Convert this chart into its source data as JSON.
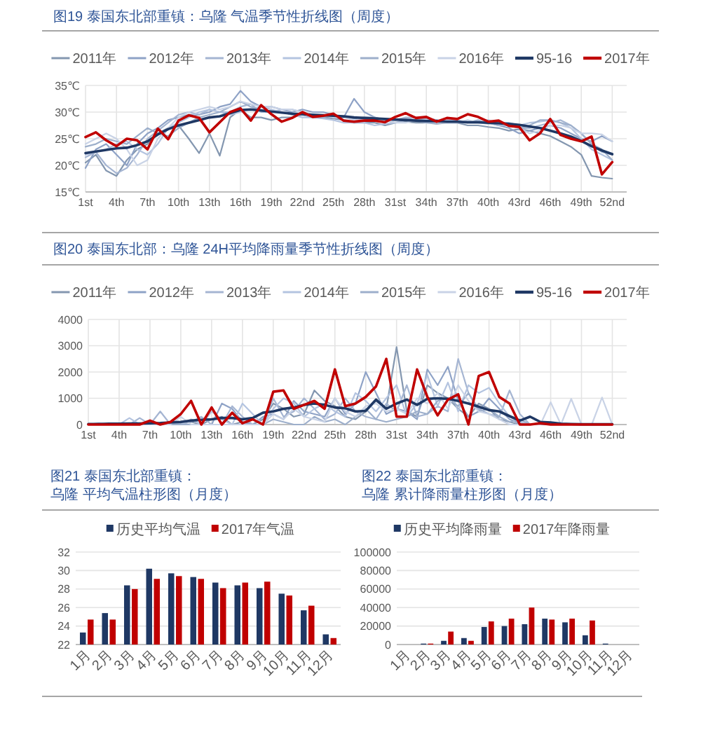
{
  "chart_data": [
    {
      "type": "line",
      "title": "图19 泰国东北部重镇：乌隆 气温季节性折线图（周度）",
      "categories": [
        "1st",
        null,
        null,
        "4th",
        null,
        null,
        "7th",
        null,
        null,
        "10th",
        null,
        null,
        "13th",
        null,
        null,
        "16th",
        null,
        null,
        "19th",
        null,
        null,
        "22nd",
        null,
        null,
        "25th",
        null,
        null,
        "28th",
        null,
        null,
        "31st",
        null,
        null,
        "34th",
        null,
        null,
        "37th",
        null,
        null,
        "40th",
        null,
        null,
        "43rd",
        null,
        null,
        "46th",
        null,
        null,
        "49th",
        null,
        null,
        "52nd"
      ],
      "ylim": [
        15,
        35
      ],
      "yticks": [
        {
          "value": 15,
          "label": "15℃"
        },
        {
          "value": 20,
          "label": "20℃"
        },
        {
          "value": 25,
          "label": "25℃"
        },
        {
          "value": 30,
          "label": "30℃"
        },
        {
          "value": 35,
          "label": "35℃"
        }
      ],
      "grid": true,
      "legend": "top",
      "series": [
        {
          "name": "2011年",
          "color": "#8497b0",
          "values": [
            20.5,
            22.0,
            19.0,
            18.0,
            21.0,
            23.0,
            24.0,
            26.0,
            27.0,
            27.5,
            25.0,
            22.3,
            26.0,
            21.8,
            29.0,
            30.5,
            29.0,
            29.0,
            28.5,
            29.0,
            29.0,
            29.5,
            29.0,
            29.0,
            28.8,
            28.5,
            28.0,
            28.0,
            28.0,
            27.5,
            28.0,
            28.2,
            28.0,
            28.0,
            27.8,
            28.0,
            28.0,
            27.5,
            27.5,
            27.2,
            27.0,
            26.5,
            26.8,
            26.5,
            26.0,
            25.5,
            24.5,
            23.5,
            22.0,
            18.0,
            17.7,
            17.5
          ]
        },
        {
          "name": "2012年",
          "color": "#8ea2c6",
          "values": [
            19.5,
            23.0,
            24.0,
            22.0,
            20.0,
            24.0,
            26.0,
            27.0,
            28.5,
            29.0,
            29.5,
            29.5,
            30.0,
            31.0,
            31.5,
            34.0,
            32.0,
            31.0,
            31.0,
            30.5,
            30.0,
            30.5,
            30.0,
            30.0,
            29.5,
            29.0,
            32.5,
            30.0,
            29.0,
            28.5,
            28.5,
            28.8,
            28.5,
            28.5,
            28.2,
            28.5,
            28.3,
            28.0,
            28.0,
            28.0,
            27.5,
            27.0,
            26.0,
            26.5,
            27.0,
            27.5,
            27.0,
            26.0,
            25.0,
            24.5,
            25.5,
            24.5
          ]
        },
        {
          "name": "2013年",
          "color": "#a5b5d2",
          "values": [
            21.5,
            22.5,
            20.0,
            18.5,
            19.5,
            22.0,
            25.0,
            26.5,
            28.0,
            29.5,
            30.0,
            29.5,
            30.5,
            30.0,
            30.0,
            31.0,
            31.5,
            30.0,
            30.0,
            30.5,
            30.5,
            30.0,
            29.5,
            29.5,
            29.0,
            29.0,
            29.0,
            28.5,
            28.5,
            28.5,
            28.5,
            29.0,
            29.0,
            28.8,
            28.5,
            28.2,
            28.0,
            28.0,
            28.5,
            28.0,
            27.5,
            27.5,
            27.0,
            27.0,
            27.5,
            28.0,
            28.5,
            27.5,
            26.0,
            24.0,
            22.5,
            22.0
          ]
        },
        {
          "name": "2014年",
          "color": "#b4c4e0",
          "values": [
            22.0,
            22.5,
            23.0,
            24.0,
            24.5,
            23.0,
            22.0,
            24.0,
            27.0,
            28.0,
            29.0,
            30.0,
            30.5,
            30.0,
            29.5,
            30.0,
            30.5,
            31.0,
            30.5,
            30.0,
            29.5,
            29.0,
            29.0,
            28.8,
            28.5,
            28.0,
            28.0,
            28.0,
            27.5,
            27.8,
            28.0,
            28.5,
            28.5,
            28.0,
            28.0,
            28.5,
            28.5,
            28.0,
            28.0,
            28.5,
            28.0,
            28.0,
            27.5,
            28.0,
            28.2,
            28.5,
            28.0,
            27.0,
            25.0,
            23.0,
            22.0,
            21.0
          ]
        },
        {
          "name": "2015年",
          "color": "#9dafcb",
          "values": [
            23.5,
            24.0,
            25.0,
            24.5,
            24.0,
            25.5,
            27.0,
            26.0,
            25.5,
            27.0,
            28.0,
            29.0,
            29.5,
            30.0,
            31.0,
            32.0,
            31.0,
            30.5,
            30.0,
            30.0,
            29.5,
            29.5,
            29.0,
            29.0,
            29.5,
            29.0,
            28.8,
            29.0,
            29.0,
            28.5,
            28.0,
            28.5,
            28.5,
            28.8,
            28.5,
            28.0,
            28.0,
            28.0,
            28.0,
            27.8,
            28.0,
            27.5,
            27.0,
            27.5,
            28.5,
            28.5,
            28.0,
            27.5,
            26.0,
            24.0,
            23.0,
            21.0
          ]
        },
        {
          "name": "2016年",
          "color": "#c9d3e6",
          "values": [
            24.0,
            25.0,
            26.0,
            25.0,
            23.0,
            20.0,
            21.0,
            25.0,
            27.0,
            29.0,
            30.0,
            30.5,
            31.0,
            30.5,
            31.0,
            32.0,
            31.5,
            31.0,
            31.0,
            30.5,
            30.5,
            30.0,
            29.5,
            29.5,
            29.0,
            29.0,
            28.5,
            28.5,
            28.5,
            28.5,
            28.0,
            28.0,
            28.5,
            28.5,
            28.0,
            28.0,
            28.0,
            28.5,
            28.0,
            28.0,
            28.0,
            27.5,
            27.0,
            26.0,
            26.5,
            27.5,
            27.5,
            27.0,
            26.0,
            26.0,
            25.8,
            24.5
          ]
        },
        {
          "name": "95-16",
          "color": "#1f3864",
          "values": [
            22.3,
            22.6,
            22.9,
            23.2,
            23.3,
            23.8,
            24.5,
            25.8,
            26.8,
            27.5,
            28.0,
            28.5,
            29.0,
            29.2,
            29.8,
            30.4,
            30.5,
            30.3,
            30.1,
            29.9,
            29.7,
            29.6,
            29.5,
            29.4,
            29.3,
            29.2,
            29.0,
            28.9,
            28.8,
            28.7,
            28.6,
            28.5,
            28.4,
            28.3,
            28.3,
            28.2,
            28.2,
            28.1,
            28.1,
            28.0,
            27.9,
            27.8,
            27.6,
            27.3,
            27.0,
            26.5,
            26.0,
            25.4,
            24.6,
            23.6,
            22.8,
            22.1
          ]
        },
        {
          "name": "2017年",
          "color": "#c00000",
          "values": [
            25.3,
            26.2,
            24.7,
            23.6,
            25.0,
            24.7,
            23.0,
            26.9,
            24.9,
            28.4,
            29.4,
            28.9,
            26.2,
            28.1,
            30.0,
            30.7,
            28.4,
            31.3,
            29.6,
            28.2,
            28.9,
            30.0,
            29.1,
            29.3,
            29.7,
            28.4,
            28.2,
            28.4,
            28.4,
            28.1,
            29.1,
            29.8,
            28.9,
            29.1,
            28.2,
            28.9,
            28.7,
            29.6,
            29.1,
            28.2,
            28.4,
            27.4,
            27.2,
            24.7,
            26.0,
            28.7,
            25.7,
            25.0,
            24.5,
            25.4,
            18.3,
            20.6
          ]
        }
      ]
    },
    {
      "type": "line",
      "title": "图20 泰国东北部：乌隆 24H平均降雨量季节性折线图（周度）",
      "categories": [
        "1st",
        null,
        null,
        "4th",
        null,
        null,
        "7th",
        null,
        null,
        "10th",
        null,
        null,
        "13th",
        null,
        null,
        "16th",
        null,
        null,
        "19th",
        null,
        null,
        "22nd",
        null,
        null,
        "25th",
        null,
        null,
        "28th",
        null,
        null,
        "31st",
        null,
        null,
        "34th",
        null,
        null,
        "37th",
        null,
        null,
        "40th",
        null,
        null,
        "43rd",
        null,
        null,
        "46th",
        null,
        null,
        "49th",
        null,
        null,
        "52nd"
      ],
      "ylim": [
        0,
        4000
      ],
      "yticks": [
        0,
        1000,
        2000,
        3000,
        4000
      ],
      "grid": true,
      "legend": "top",
      "series": [
        {
          "name": "2011年",
          "color": "#8497b0",
          "values": [
            0,
            0,
            0,
            0,
            0,
            0,
            0,
            0,
            0,
            50,
            100,
            0,
            200,
            300,
            0,
            100,
            0,
            200,
            800,
            600,
            300,
            400,
            1300,
            900,
            700,
            300,
            200,
            500,
            900,
            600,
            2950,
            500,
            300,
            1500,
            1200,
            1000,
            600,
            300,
            800,
            600,
            200,
            100,
            0,
            0,
            0,
            0,
            0,
            0,
            0,
            0,
            0,
            0
          ]
        },
        {
          "name": "2012年",
          "color": "#8ea2c6",
          "values": [
            0,
            50,
            0,
            0,
            0,
            0,
            0,
            0,
            0,
            0,
            0,
            0,
            0,
            800,
            600,
            100,
            0,
            300,
            400,
            200,
            900,
            500,
            400,
            300,
            1000,
            400,
            800,
            2000,
            1200,
            400,
            600,
            500,
            200,
            2100,
            1500,
            2200,
            900,
            300,
            500,
            1000,
            600,
            200,
            50,
            0,
            0,
            0,
            0,
            0,
            0,
            0,
            0,
            0
          ]
        },
        {
          "name": "2013年",
          "color": "#a5b5d2",
          "values": [
            0,
            0,
            0,
            0,
            0,
            250,
            0,
            500,
            0,
            0,
            100,
            300,
            0,
            0,
            700,
            300,
            0,
            0,
            1000,
            300,
            500,
            1000,
            600,
            200,
            400,
            1000,
            500,
            300,
            200,
            800,
            500,
            1500,
            300,
            400,
            700,
            500,
            2500,
            1200,
            600,
            400,
            300,
            1300,
            400,
            0,
            0,
            0,
            0,
            0,
            0,
            0,
            0,
            0
          ]
        },
        {
          "name": "2014年",
          "color": "#b4c4e0",
          "values": [
            0,
            0,
            0,
            0,
            250,
            0,
            0,
            0,
            100,
            0,
            200,
            0,
            500,
            200,
            0,
            800,
            400,
            0,
            600,
            1000,
            800,
            300,
            600,
            800,
            500,
            300,
            1200,
            900,
            500,
            1000,
            1500,
            300,
            800,
            1900,
            700,
            1600,
            500,
            1500,
            1200,
            1400,
            800,
            300,
            100,
            0,
            0,
            0,
            0,
            0,
            0,
            0,
            0,
            0
          ]
        },
        {
          "name": "2015年",
          "color": "#9dafcb",
          "values": [
            0,
            0,
            0,
            0,
            0,
            0,
            0,
            0,
            0,
            0,
            0,
            0,
            0,
            0,
            0,
            0,
            0,
            0,
            200,
            100,
            0,
            0,
            300,
            100,
            200,
            0,
            300,
            600,
            200,
            100,
            200,
            300,
            500,
            400,
            900,
            1000,
            700,
            1200,
            500,
            600,
            300,
            100,
            200,
            0,
            0,
            0,
            0,
            0,
            0,
            0,
            0,
            0
          ]
        },
        {
          "name": "2016年",
          "color": "#c9d3e6",
          "values": [
            0,
            0,
            0,
            0,
            0,
            0,
            0,
            0,
            0,
            300,
            0,
            0,
            0,
            0,
            0,
            0,
            0,
            0,
            400,
            200,
            600,
            300,
            200,
            100,
            1000,
            500,
            300,
            700,
            800,
            500,
            600,
            400,
            1000,
            800,
            1200,
            600,
            1500,
            900,
            500,
            400,
            200,
            0,
            0,
            0,
            0,
            850,
            0,
            980,
            0,
            0,
            1030,
            0
          ]
        },
        {
          "name": "95-16",
          "color": "#1f3864",
          "values": [
            20,
            20,
            30,
            30,
            40,
            40,
            50,
            60,
            80,
            100,
            150,
            180,
            200,
            250,
            250,
            200,
            250,
            450,
            500,
            600,
            650,
            750,
            800,
            750,
            650,
            620,
            500,
            520,
            950,
            600,
            800,
            950,
            750,
            980,
            1000,
            980,
            900,
            800,
            680,
            550,
            500,
            320,
            150,
            300,
            100,
            80,
            30,
            20,
            10,
            10,
            10,
            10
          ]
        },
        {
          "name": "2017年",
          "color": "#c00000",
          "values": [
            0,
            0,
            0,
            0,
            0,
            0,
            150,
            0,
            100,
            400,
            900,
            0,
            650,
            0,
            450,
            50,
            200,
            0,
            1250,
            1300,
            600,
            750,
            900,
            600,
            2100,
            700,
            800,
            1050,
            1450,
            2500,
            300,
            300,
            2100,
            1050,
            350,
            950,
            1150,
            0,
            1850,
            2000,
            1050,
            800,
            0,
            0,
            50,
            0,
            0,
            0,
            0,
            0,
            0,
            0
          ]
        }
      ]
    },
    {
      "type": "bar",
      "title": "图21 泰国东北部重镇：乌隆 平均气温柱形图（月度）",
      "categories": [
        "1月",
        "2月",
        "3月",
        "4月",
        "5月",
        "6月",
        "7月",
        "8月",
        "9月",
        "10月",
        "11月",
        "12月"
      ],
      "ylim": [
        22,
        32
      ],
      "yticks": [
        22,
        24,
        26,
        28,
        30,
        32
      ],
      "grid": "y",
      "legend": "top",
      "series": [
        {
          "name": "历史平均气温",
          "color": "#1f3864",
          "values": [
            23.3,
            25.4,
            28.4,
            30.2,
            29.7,
            29.3,
            28.7,
            28.4,
            28.1,
            27.5,
            25.7,
            23.1
          ]
        },
        {
          "name": "2017年气温",
          "color": "#c00000",
          "values": [
            24.7,
            24.7,
            28.0,
            29.1,
            29.4,
            29.1,
            28.1,
            28.7,
            28.8,
            27.3,
            26.2,
            22.7
          ]
        }
      ]
    },
    {
      "type": "bar",
      "title": "图22 泰国东北部重镇：乌隆 累计降雨量柱形图（月度）",
      "categories": [
        "1月",
        "2月",
        "3月",
        "4月",
        "5月",
        "6月",
        "7月",
        "8月",
        "9月",
        "10月",
        "11月",
        "12月"
      ],
      "ylim": [
        0,
        100000
      ],
      "yticks": [
        0,
        20000,
        40000,
        60000,
        80000,
        100000
      ],
      "grid": "y",
      "legend": "top",
      "series": [
        {
          "name": "历史平均降雨量",
          "color": "#1f3864",
          "values": [
            null,
            1000,
            4000,
            7000,
            19000,
            20000,
            22000,
            28000,
            24000,
            10000,
            1000,
            null
          ]
        },
        {
          "name": "2017年降雨量",
          "color": "#c00000",
          "values": [
            null,
            1000,
            14000,
            4000,
            25000,
            28000,
            40000,
            27000,
            28000,
            26000,
            null,
            null
          ]
        }
      ]
    }
  ]
}
